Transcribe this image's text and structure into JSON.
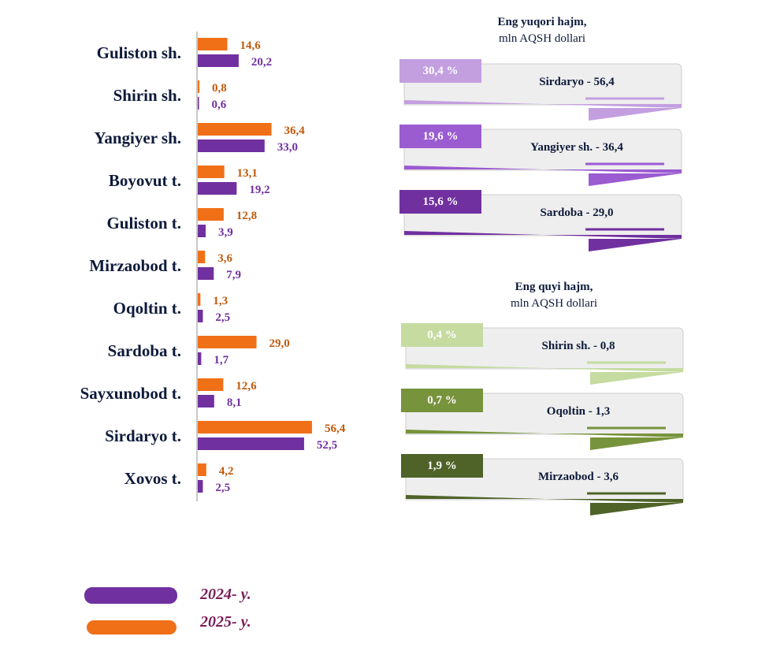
{
  "colors": {
    "y2024": "#7030a0",
    "y2025": "#f07018",
    "label_2024": "#7030a0",
    "label_2025": "#c05a0c",
    "axis": "#c9c9c9"
  },
  "chart_data": {
    "type": "bar",
    "orientation": "horizontal",
    "categories": [
      "Guliston sh.",
      "Shirin sh.",
      "Yangiyer sh.",
      "Boyovut t.",
      "Guliston t.",
      "Mirzaobod t.",
      "Oqoltin t.",
      "Sardoba t.",
      "Sayxunobod t.",
      "Sirdaryo t.",
      "Xovos t."
    ],
    "series": [
      {
        "name": "2025- y.",
        "values": [
          14.6,
          0.8,
          36.4,
          13.1,
          12.8,
          3.6,
          1.3,
          29.0,
          12.6,
          56.4,
          4.2
        ],
        "labels": [
          "14,6",
          "0,8",
          "36,4",
          "13,1",
          "12,8",
          "3,6",
          "1,3",
          "29,0",
          "12,6",
          "56,4",
          "4,2"
        ]
      },
      {
        "name": "2024- y.",
        "values": [
          20.2,
          0.6,
          33.0,
          19.2,
          3.9,
          7.9,
          2.5,
          1.7,
          8.1,
          52.5,
          2.5
        ],
        "labels": [
          "20,2",
          "0,6",
          "33,0",
          "19,2",
          "3,9",
          "7,9",
          "2,5",
          "1,7",
          "8,1",
          "52,5",
          "2,5"
        ]
      }
    ],
    "xlim": [
      0,
      60
    ],
    "grid": false
  },
  "top_panel": {
    "title_line1": "Eng yuqori hajm,",
    "title_line2": "mln AQSH dollari",
    "cards": [
      {
        "pct": "30,4 %",
        "text": "Sirdaryo - 56,4",
        "color": "#c39fe0"
      },
      {
        "pct": "19,6 %",
        "text": "Yangiyer sh. - 36,4",
        "color": "#9b5bd1"
      },
      {
        "pct": "15,6 %",
        "text": "Sardoba  - 29,0",
        "color": "#7030a0"
      }
    ]
  },
  "bottom_panel": {
    "title_line1": "Eng quyi hajm,",
    "title_line2": "mln AQSH dollari",
    "cards": [
      {
        "pct": "0,4 %",
        "text": "Shirin sh. -  0,8",
        "color": "#c5dba0"
      },
      {
        "pct": "0,7 %",
        "text": "Oqoltin - 1,3",
        "color": "#77933c"
      },
      {
        "pct": "1,9 %",
        "text": "Mirzaobod - 3,6",
        "color": "#4f6228"
      }
    ]
  },
  "legend": [
    {
      "label": "2024- y.",
      "color": "#7030a0"
    },
    {
      "label": "2025- y.",
      "color": "#f07018"
    }
  ]
}
